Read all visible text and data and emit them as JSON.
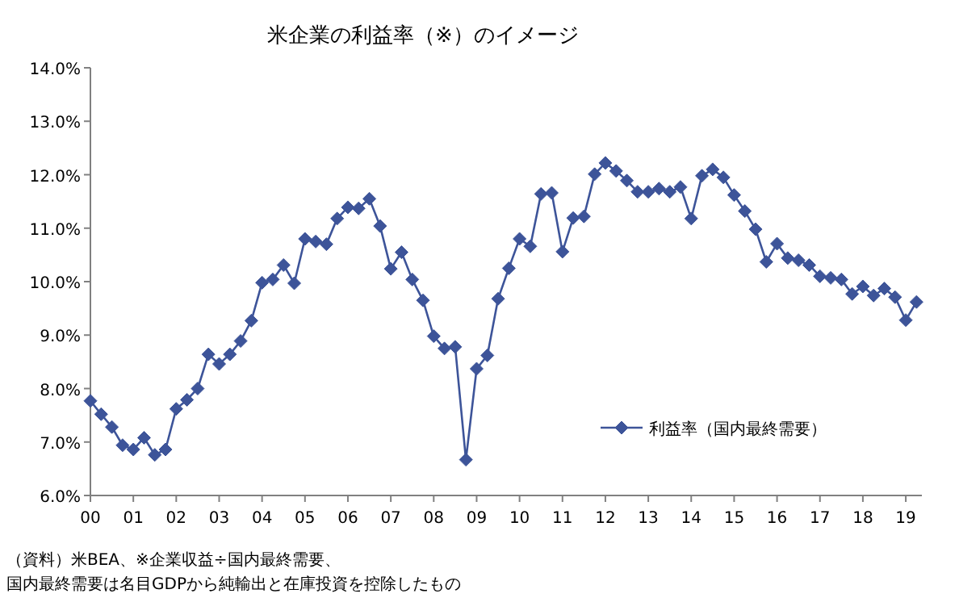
{
  "chart_data": {
    "type": "line",
    "title": "米企業の利益率（※）のイメージ",
    "categories": [
      "00",
      null,
      null,
      null,
      "01",
      null,
      null,
      null,
      "02",
      null,
      null,
      null,
      "03",
      null,
      null,
      null,
      "04",
      null,
      null,
      null,
      "05",
      null,
      null,
      null,
      "06",
      null,
      null,
      null,
      "07",
      null,
      null,
      null,
      "08",
      null,
      null,
      null,
      "09",
      null,
      null,
      null,
      "10",
      null,
      null,
      null,
      "11",
      null,
      null,
      null,
      "12",
      null,
      null,
      null,
      "13",
      null,
      null,
      null,
      "14",
      null,
      null,
      null,
      "15",
      null,
      null,
      null,
      "16",
      null,
      null,
      null,
      "17",
      null,
      null,
      null,
      "18",
      null,
      null,
      null,
      "19",
      null
    ],
    "series": [
      {
        "name": "利益率（国内最終需要）",
        "color": "#3d5499",
        "values": [
          7.77,
          7.52,
          7.28,
          6.94,
          6.86,
          7.08,
          6.76,
          6.86,
          7.62,
          7.79,
          8.0,
          8.64,
          8.46,
          8.64,
          8.89,
          9.27,
          9.98,
          10.04,
          10.31,
          9.97,
          10.8,
          10.75,
          10.7,
          11.18,
          11.39,
          11.37,
          11.55,
          11.04,
          10.24,
          10.55,
          10.04,
          9.65,
          8.98,
          8.75,
          8.78,
          6.67,
          8.37,
          8.62,
          9.68,
          10.25,
          10.8,
          10.66,
          11.64,
          11.66,
          10.56,
          11.19,
          11.22,
          12.01,
          12.22,
          12.07,
          11.89,
          11.68,
          11.68,
          11.74,
          11.68,
          11.77,
          11.18,
          11.98,
          12.1,
          11.95,
          11.62,
          11.32,
          10.98,
          10.37,
          10.71,
          10.44,
          10.4,
          10.31,
          10.1,
          10.07,
          10.04,
          9.77,
          9.91,
          9.74,
          9.87,
          9.71,
          9.28,
          9.62
        ]
      }
    ],
    "ylim": [
      6,
      14
    ],
    "yticks": [
      {
        "value": 6,
        "label": "6.0%"
      },
      {
        "value": 7,
        "label": "7.0%"
      },
      {
        "value": 8,
        "label": "8.0%"
      },
      {
        "value": 9,
        "label": "9.0%"
      },
      {
        "value": 10,
        "label": "10.0%"
      },
      {
        "value": 11,
        "label": "11.0%"
      },
      {
        "value": 12,
        "label": "12.0%"
      },
      {
        "value": 13,
        "label": "13.0%"
      },
      {
        "value": 14,
        "label": "14.0%"
      }
    ],
    "marker": "diamond",
    "legend": "bottom right",
    "annotations": [
      "（資料）米BEA、※企業収益÷国内最終需要、",
      "国内最終需要は名目GDPから純輸出と在庫投資を控除したもの"
    ]
  }
}
